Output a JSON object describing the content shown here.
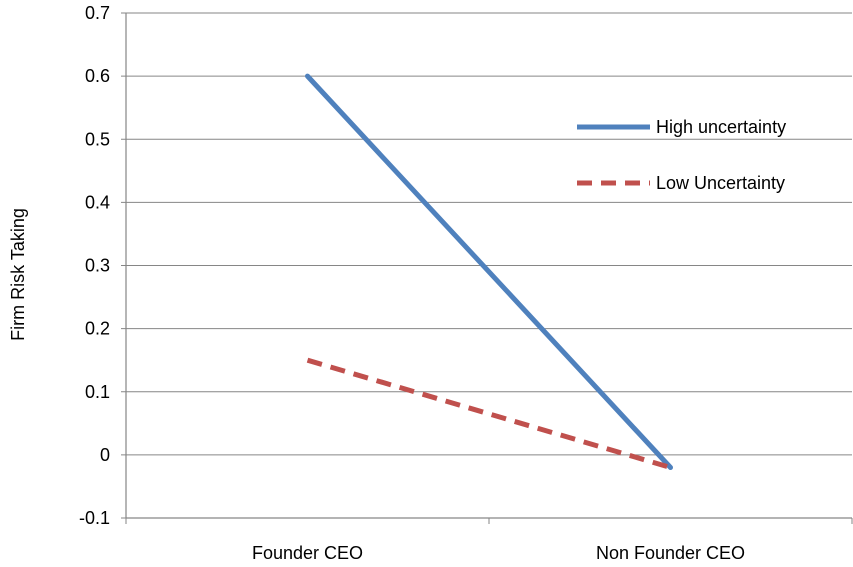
{
  "chart_data": {
    "type": "line",
    "title": "",
    "xlabel": "",
    "ylabel": "Firm Risk Taking",
    "categories": [
      "Founder CEO",
      "Non Founder CEO"
    ],
    "ylim": [
      -0.1,
      0.7
    ],
    "yticks": [
      "-0.1",
      "0",
      "0.1",
      "0.2",
      "0.3",
      "0.4",
      "0.5",
      "0.6",
      "0.7"
    ],
    "grid": true,
    "legend_position": "right",
    "series": [
      {
        "name": "High uncertainty",
        "values": [
          0.6,
          -0.02
        ],
        "color": "#4F81BD",
        "line_style": "solid"
      },
      {
        "name": "Low Uncertainty",
        "values": [
          0.15,
          -0.02
        ],
        "color": "#C0504D",
        "line_style": "dashed"
      }
    ]
  }
}
